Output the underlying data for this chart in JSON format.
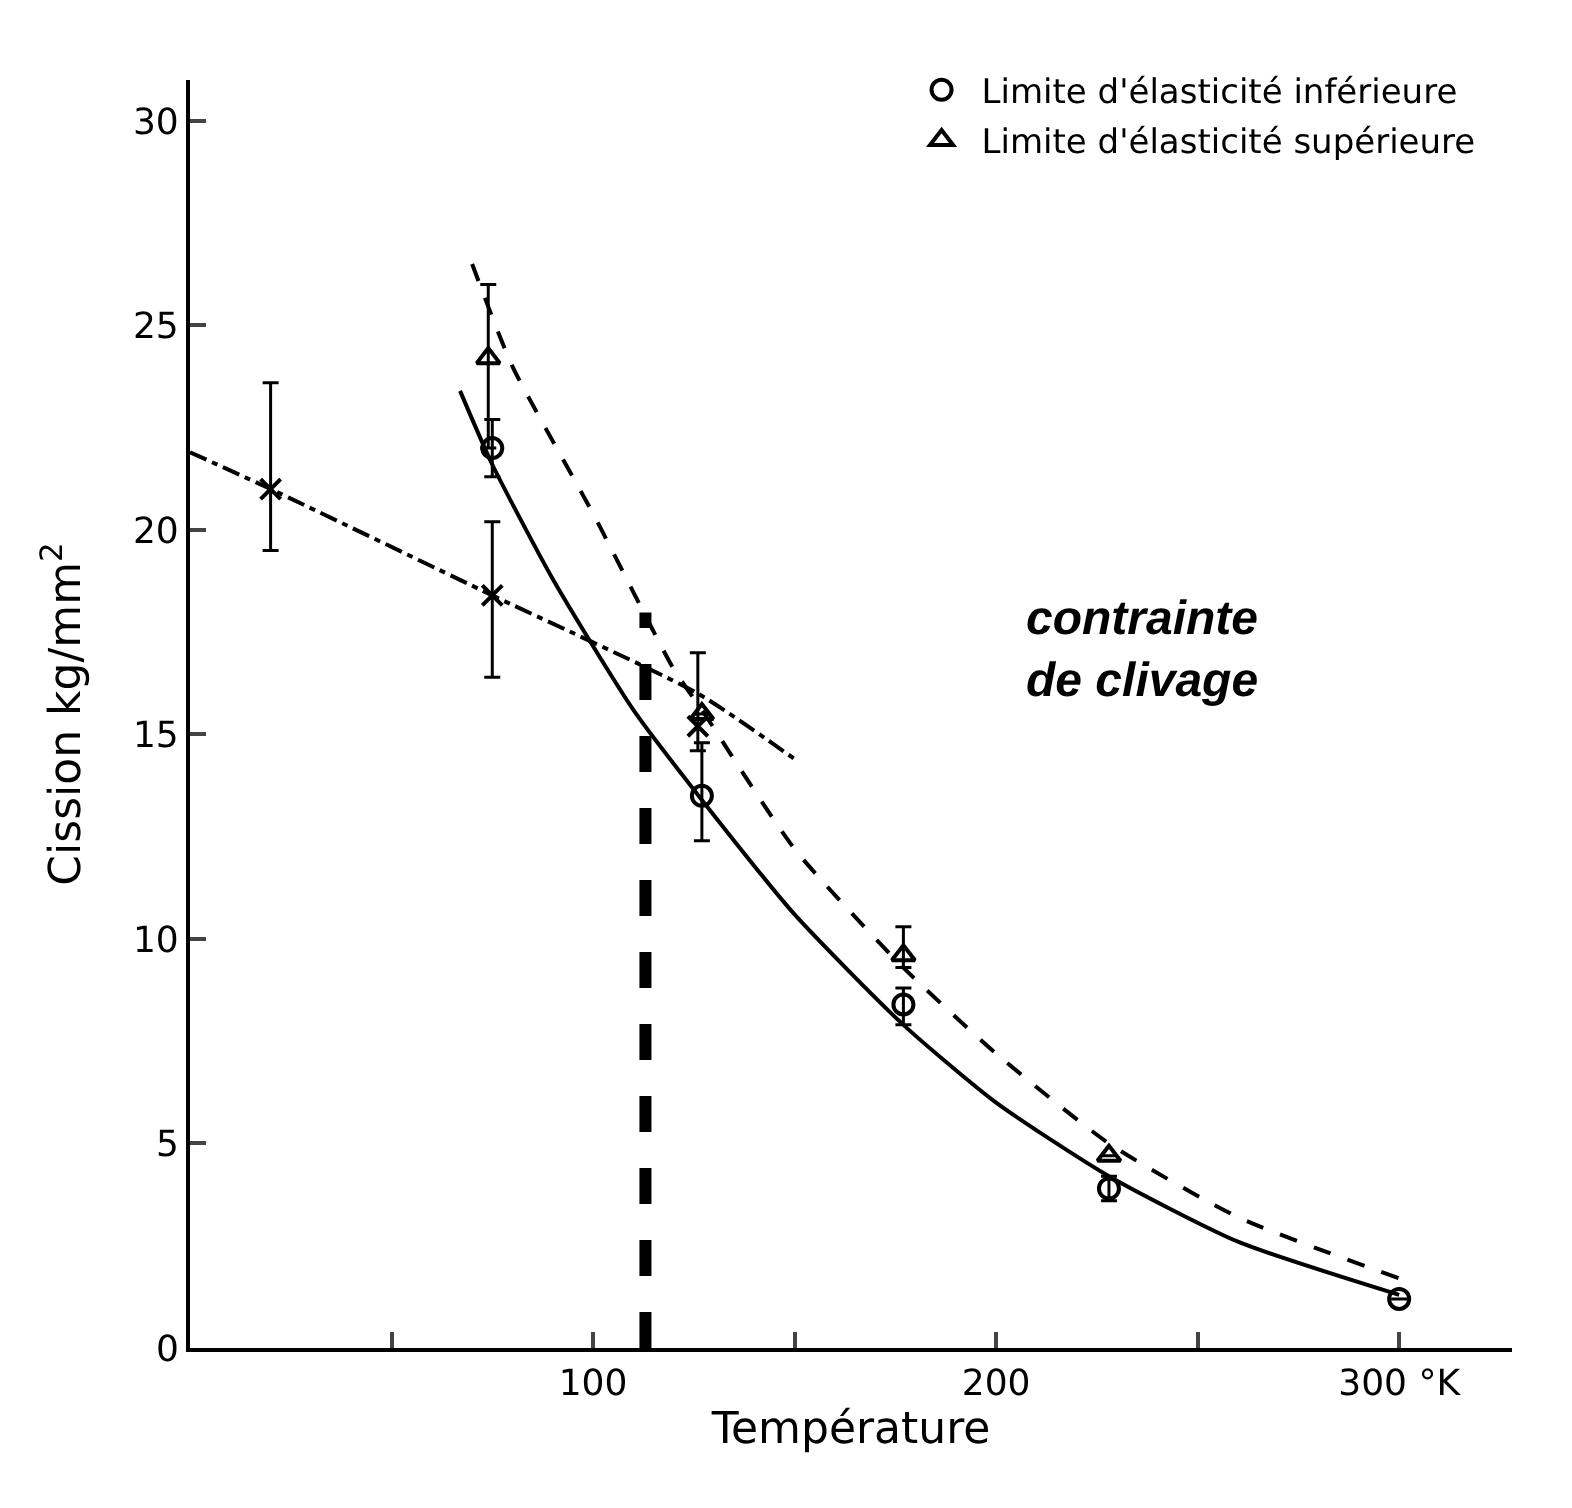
{
  "chart_data": {
    "type": "scatter",
    "xlabel": "Température",
    "ylabel": "Cission kg/mm$^{2}$",
    "xlim": [
      0,
      328
    ],
    "ylim": [
      0,
      31
    ],
    "xticks": [
      {
        "value": 0,
        "label": null
      },
      {
        "value": 50,
        "label": null
      },
      100,
      {
        "value": 150,
        "label": null
      },
      200,
      {
        "value": 250,
        "label": null
      },
      {
        "value": 300,
        "label": "300 °K"
      }
    ],
    "yticks": [
      0,
      5,
      10,
      15,
      20,
      25,
      30
    ],
    "grid": false,
    "legend": "top right",
    "series": [
      {
        "name": "Limite d'élasticité inférieure",
        "color": "#000000",
        "marker": "circle",
        "x": [
          75,
          127,
          177,
          228,
          300
        ],
        "values": [
          22,
          13.5,
          8.4,
          3.9,
          1.2
        ],
        "errors": [
          [
            21.3,
            22.7
          ],
          [
            12.4,
            14.8
          ],
          [
            7.9,
            8.8
          ],
          [
            3.6,
            4.2
          ],
          null
        ]
      },
      {
        "name": "Limite d'élasticité supérieure",
        "color": "#000000",
        "marker": "triangle",
        "x": [
          74,
          127,
          177,
          228
        ],
        "values": [
          24.2,
          15.5,
          9.6,
          4.7
        ],
        "errors": [
          [
            22,
            26
          ],
          null,
          [
            9.3,
            10.3
          ],
          null
        ]
      },
      {
        "color": "#000000",
        "marker": "cross",
        "x": [
          20,
          75,
          126
        ],
        "values": [
          21.0,
          18.4,
          15.2
        ],
        "errors": [
          [
            19.5,
            23.6
          ],
          [
            16.4,
            20.2
          ],
          [
            14.6,
            17.0
          ]
        ]
      },
      {
        "type": "line",
        "color": "#000000",
        "marker": "none",
        "line_style": "solid",
        "x": [
          67,
          75,
          90,
          110,
          127,
          150,
          177,
          200,
          228,
          260,
          300
        ],
        "values": [
          23.4,
          21.6,
          18.8,
          15.6,
          13.4,
          10.6,
          7.9,
          6.0,
          4.2,
          2.6,
          1.3
        ]
      },
      {
        "type": "line",
        "color": "#000000",
        "marker": "none",
        "line_style": "dashed",
        "x": [
          70,
          80,
          100,
          120,
          127,
          150,
          177,
          200,
          228,
          260,
          300
        ],
        "values": [
          26.5,
          24.0,
          20.4,
          16.6,
          15.6,
          12.2,
          9.3,
          7.2,
          5.0,
          3.2,
          1.7
        ]
      },
      {
        "type": "line",
        "color": "#000000",
        "marker": "none",
        "line_style": "dashdot",
        "x": [
          0,
          20,
          75,
          126,
          150
        ],
        "values": [
          21.9,
          21.0,
          18.4,
          16.0,
          14.4
        ]
      }
    ],
    "ref_lines": [
      {
        "axis": "x",
        "value": 113,
        "color": "#000000",
        "line_style": "dashed"
      }
    ],
    "annotations": [
      "contrainte\nde clivage"
    ]
  }
}
